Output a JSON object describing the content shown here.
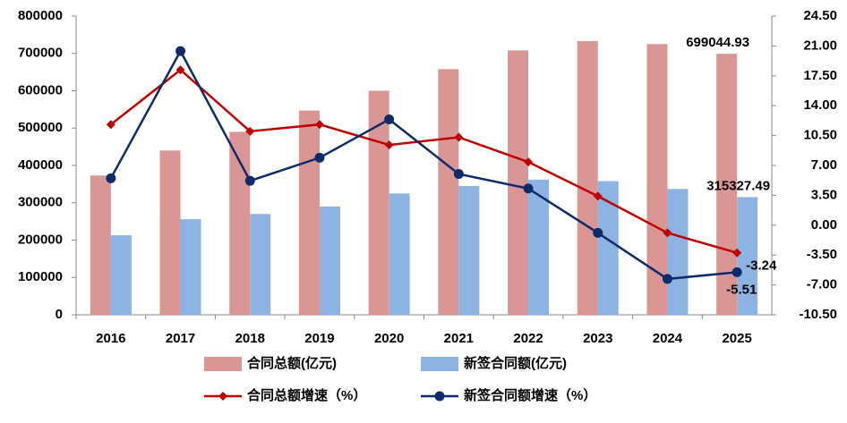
{
  "chart_data": {
    "type": "bar-line",
    "categories": [
      "2016",
      "2017",
      "2018",
      "2019",
      "2020",
      "2021",
      "2022",
      "2023",
      "2024",
      "2025"
    ],
    "series": [
      {
        "name": "合同总额(亿元)",
        "type": "bar",
        "color": "#d99694",
        "values": [
          373000,
          440000,
          490000,
          547000,
          600000,
          658000,
          708000,
          733000,
          725000,
          699044.93
        ]
      },
      {
        "name": "新签合同额(亿元)",
        "type": "bar",
        "color": "#8db3e2",
        "values": [
          213000,
          256000,
          270000,
          290000,
          325000,
          345000,
          362000,
          358000,
          337000,
          315327.49
        ]
      },
      {
        "name": "合同总额增速（%）",
        "type": "line",
        "marker": "diamond",
        "axis": "y2",
        "color": "#c00000",
        "values": [
          11.8,
          18.2,
          11.0,
          11.8,
          9.4,
          10.3,
          7.4,
          3.4,
          -0.9,
          -3.24
        ]
      },
      {
        "name": "新签合同额增速（%）",
        "type": "line",
        "marker": "circle",
        "axis": "y2",
        "color": "#0d2b6b",
        "values": [
          5.5,
          20.4,
          5.2,
          7.9,
          12.4,
          6.0,
          4.3,
          -0.9,
          -6.3,
          -5.51
        ]
      }
    ],
    "ylim": [
      0,
      800000
    ],
    "yticks": [
      0,
      100000,
      200000,
      300000,
      400000,
      500000,
      600000,
      700000,
      800000
    ],
    "y2lim": [
      -10.5,
      24.5
    ],
    "y2ticks": [
      {
        "value": -10.5,
        "label": "-10.50"
      },
      {
        "value": -7,
        "label": "-7.00"
      },
      {
        "value": -3.5,
        "label": "-3.50"
      },
      {
        "value": 0,
        "label": "0.00"
      },
      {
        "value": 3.5,
        "label": "3.50"
      },
      {
        "value": 7,
        "label": "7.00"
      },
      {
        "value": 10.5,
        "label": "10.50"
      },
      {
        "value": 14,
        "label": "14.00"
      },
      {
        "value": 17.5,
        "label": "17.50"
      },
      {
        "value": 21,
        "label": "21.00"
      },
      {
        "value": 24.5,
        "label": "24.50"
      }
    ],
    "grid": false
  }
}
